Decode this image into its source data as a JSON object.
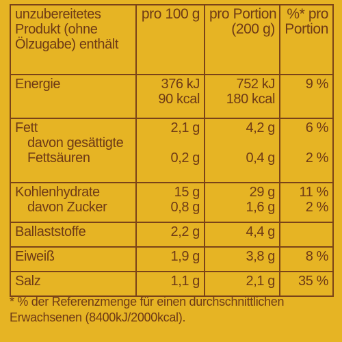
{
  "header": {
    "label": "unzubereitetes Produkt (ohne Ölzugabe) enthält",
    "col_per100": "pro 100 g",
    "col_portion_line1": "pro Portion",
    "col_portion_line2": "(200 g)",
    "col_percent_line1": "%* pro",
    "col_percent_line2": "Portion"
  },
  "rows": {
    "energie": {
      "label": "Energie",
      "per100_kj": "376 kJ",
      "per100_kcal": "90 kcal",
      "portion_kj": "752 kJ",
      "portion_kcal": "180 kcal",
      "percent": "9 %"
    },
    "fett": {
      "label": "Fett",
      "per100": "2,1 g",
      "portion": "4,2 g",
      "percent": "6 %",
      "sub_label_line1": "davon gesättigte",
      "sub_label_line2": "Fettsäuren",
      "sub_per100": "0,2 g",
      "sub_portion": "0,4 g",
      "sub_percent": "2 %"
    },
    "kohlenhydrate": {
      "label": "Kohlenhydrate",
      "per100": "15 g",
      "portion": "29 g",
      "percent": "11 %",
      "sub_label": "davon Zucker",
      "sub_per100": "0,8 g",
      "sub_portion": "1,6 g",
      "sub_percent": "2 %"
    },
    "ballaststoffe": {
      "label": "Ballaststoffe",
      "per100": "2,2 g",
      "portion": "4,4 g",
      "percent": ""
    },
    "eiweiss": {
      "label": "Eiweiß",
      "per100": "1,9 g",
      "portion": "3,8 g",
      "percent": "8 %"
    },
    "salz": {
      "label": "Salz",
      "per100": "1,1 g",
      "portion": "2,1 g",
      "percent": "35 %"
    }
  },
  "footnote": "* % der Referenzmenge für einen durchschnittlichen Erwachsenen (8400kJ/2000kcal).",
  "colors": {
    "background": "#e6b424",
    "text": "#6e3a16",
    "border": "#7a4318"
  }
}
